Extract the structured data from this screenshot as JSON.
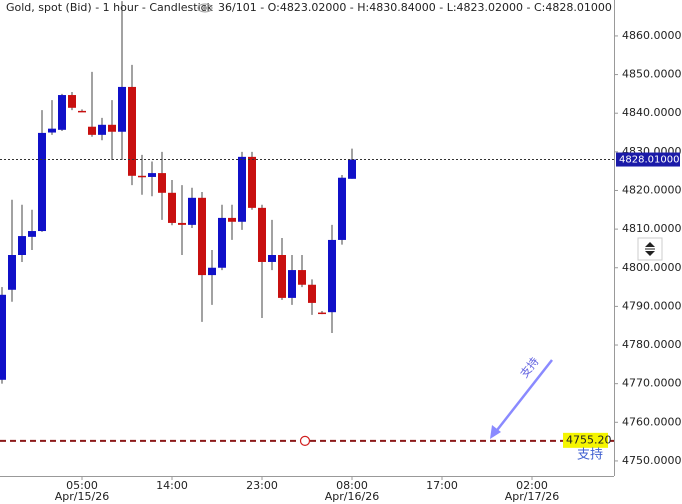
{
  "chart_data": {
    "type": "candlestick",
    "title": "Gold, spot (Bid) - 1 hour - Candlestick",
    "subtitle": "36/101 - O:4823.02000 - H:4830.84000 - L:4823.02000 - C:4828.01000",
    "up_color": "#1010c8",
    "down_color": "#c81010",
    "series": [
      {
        "name": "open",
        "values": [
          4771,
          4794.3,
          4803.3,
          4808,
          4809.5,
          4835,
          4835.7,
          4844.7,
          4840.6,
          4836.5,
          4834.4,
          4837,
          4835.2,
          4846.8,
          4823.8,
          4823.5,
          4824.5,
          4819.4,
          4811.6,
          4811.1,
          4818.1,
          4798.1,
          4800,
          4812.9,
          4811.9,
          4828.7,
          4815.5,
          4801.5,
          4803.3,
          4792.2,
          4799.4,
          4795.6,
          4788.4,
          4788.5,
          4807.2,
          4823.02
        ]
      },
      {
        "name": "high",
        "values": [
          4795,
          4817.6,
          4816.3,
          4815,
          4840.8,
          4843.4,
          4845,
          4845.5,
          4841,
          4850.7,
          4838.8,
          4843.4,
          4869,
          4852.5,
          4829.2,
          4827.5,
          4830,
          4822.7,
          4821.4,
          4820.7,
          4819.6,
          4804.6,
          4816.3,
          4816.3,
          4830,
          4830,
          4816.3,
          4812.4,
          4807.7,
          4803.3,
          4803.3,
          4797,
          4788.8,
          4811.1,
          4824,
          4830.84
        ]
      },
      {
        "name": "low",
        "values": [
          4770,
          4791.2,
          4801.5,
          4804.6,
          4809.3,
          4834.4,
          4835.4,
          4840.8,
          4840.3,
          4833.9,
          4833,
          4827.9,
          4827.9,
          4821.4,
          4818.9,
          4818.5,
          4812.4,
          4811,
          4803.3,
          4810.3,
          4786,
          4790.4,
          4799.4,
          4807.2,
          4809.8,
          4815,
          4787,
          4799.4,
          4791.7,
          4790.4,
          4795,
          4787.8,
          4788,
          4783.1,
          4806,
          4823.02
        ]
      },
      {
        "name": "close",
        "values": [
          4793,
          4803.3,
          4808.2,
          4809.5,
          4834.9,
          4836,
          4844.7,
          4841.4,
          4840.5,
          4834.4,
          4837,
          4835.2,
          4846.8,
          4823.8,
          4823.5,
          4824.5,
          4819.4,
          4811.6,
          4811.1,
          4818.1,
          4798.1,
          4800,
          4812.9,
          4811.9,
          4828.7,
          4815.5,
          4801.5,
          4803.3,
          4792.2,
          4799.4,
          4795.6,
          4790.9,
          4788.3,
          4807.2,
          4823.3,
          4828.01
        ]
      }
    ],
    "xlim": [
      -0.2,
      61.2
    ],
    "xticks": [
      {
        "value": 8,
        "label": "05:00"
      },
      {
        "value": 17,
        "label": "14:00"
      },
      {
        "value": 26,
        "label": "23:00"
      },
      {
        "value": 35,
        "label": "08:00"
      },
      {
        "value": 44,
        "label": "17:00"
      },
      {
        "value": 53,
        "label": "02:00"
      }
    ],
    "xdates": [
      {
        "value": 8,
        "label": "Apr/15/26"
      },
      {
        "value": 35,
        "label": "Apr/16/26"
      },
      {
        "value": 53,
        "label": "Apr/17/26"
      }
    ],
    "ylim": [
      4746.1,
      4869.3
    ],
    "yticks": [
      {
        "value": 4750,
        "label": "4750.00000"
      },
      {
        "value": 4760,
        "label": "4760.00000"
      },
      {
        "value": 4770,
        "label": "4770.00000"
      },
      {
        "value": 4780,
        "label": "4780.00000"
      },
      {
        "value": 4790,
        "label": "4790.00000"
      },
      {
        "value": 4800,
        "label": "4800.00000"
      },
      {
        "value": 4810,
        "label": "4810.00000"
      },
      {
        "value": 4820,
        "label": "4820.00000"
      },
      {
        "value": 4830,
        "label": "4830.00000"
      },
      {
        "value": 4840,
        "label": "4840.00000"
      },
      {
        "value": 4850,
        "label": "4850.00000"
      },
      {
        "value": 4860,
        "label": "4860.00000"
      }
    ],
    "current_price": {
      "value": 4828.01,
      "label": "4828.01000"
    },
    "support": {
      "value": 4755.2,
      "label": "4755.20",
      "text": "支持"
    },
    "arrow_label": "支持"
  }
}
